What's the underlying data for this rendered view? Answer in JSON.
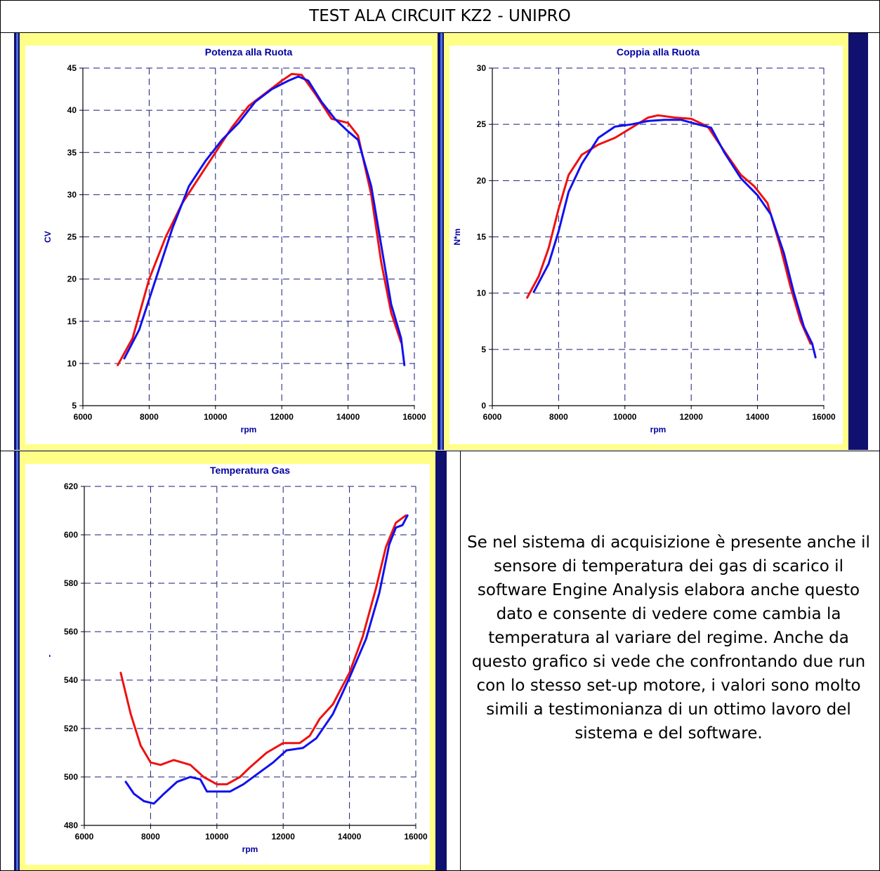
{
  "page_title": "TEST ALA CIRCUIT KZ2 - UNIPRO",
  "description": "Se nel sistema di acquisizione è presente anche il sensore di temperatura dei gas di scarico il software Engine Analysis elabora anche questo dato e consente di vedere come cambia la temperatura al variare del regime. Anche da questo grafico si vede che confrontando due run con lo stesso set-up motore, i valori sono molto simili a testimonianza di un ottimo lavoro del sistema e del software.",
  "colors": {
    "run_a": "#ee1111",
    "run_b": "#1111ee",
    "plot_border": "#ffff88",
    "grid": "#1a1a7a"
  },
  "chart_data": [
    {
      "type": "line",
      "title": "Potenza alla Ruota",
      "xlabel": "rpm",
      "ylabel": "CV",
      "xlim": [
        6000,
        16000
      ],
      "ylim": [
        5,
        45
      ],
      "xticks": [
        "6000",
        "8000",
        "10000",
        "12000",
        "14000",
        "16000"
      ],
      "yticks": [
        "5",
        "10",
        "15",
        "20",
        "25",
        "30",
        "35",
        "40",
        "45"
      ],
      "grid": true,
      "series": [
        {
          "color": "red",
          "points": [
            [
              7050,
              9.8
            ],
            [
              7500,
              13
            ],
            [
              8000,
              20
            ],
            [
              8500,
              25
            ],
            [
              9000,
              29
            ],
            [
              9500,
              32
            ],
            [
              10000,
              35
            ],
            [
              10500,
              38
            ],
            [
              11000,
              40.5
            ],
            [
              11500,
              42
            ],
            [
              12000,
              43.5
            ],
            [
              12300,
              44.3
            ],
            [
              12600,
              44.2
            ],
            [
              13000,
              42
            ],
            [
              13500,
              39
            ],
            [
              14000,
              38.5
            ],
            [
              14300,
              37
            ],
            [
              14700,
              30
            ],
            [
              15000,
              22
            ],
            [
              15300,
              16
            ],
            [
              15600,
              12.5
            ]
          ]
        },
        {
          "color": "blue",
          "points": [
            [
              7250,
              10.6
            ],
            [
              7700,
              14
            ],
            [
              8200,
              20
            ],
            [
              8700,
              26
            ],
            [
              9200,
              31
            ],
            [
              9700,
              34
            ],
            [
              10200,
              36.5
            ],
            [
              10700,
              38.5
            ],
            [
              11200,
              41
            ],
            [
              11700,
              42.5
            ],
            [
              12200,
              43.5
            ],
            [
              12500,
              44
            ],
            [
              12800,
              43.5
            ],
            [
              13200,
              41
            ],
            [
              13600,
              39
            ],
            [
              14000,
              37.5
            ],
            [
              14300,
              36.5
            ],
            [
              14700,
              31
            ],
            [
              15000,
              24
            ],
            [
              15300,
              17
            ],
            [
              15600,
              13
            ],
            [
              15700,
              9.8
            ]
          ]
        }
      ]
    },
    {
      "type": "line",
      "title": "Coppia alla Ruota",
      "xlabel": "rpm",
      "ylabel": "N*m",
      "xlim": [
        6000,
        16000
      ],
      "ylim": [
        0,
        30
      ],
      "xticks": [
        "6000",
        "8000",
        "10000",
        "12000",
        "14000",
        "16000"
      ],
      "yticks": [
        "0",
        "5",
        "10",
        "15",
        "20",
        "25",
        "30"
      ],
      "grid": true,
      "series": [
        {
          "color": "red",
          "points": [
            [
              7050,
              9.6
            ],
            [
              7400,
              11.5
            ],
            [
              7700,
              14
            ],
            [
              8000,
              17.5
            ],
            [
              8300,
              20.5
            ],
            [
              8700,
              22.3
            ],
            [
              9200,
              23.2
            ],
            [
              9700,
              23.8
            ],
            [
              10200,
              24.7
            ],
            [
              10700,
              25.6
            ],
            [
              11000,
              25.8
            ],
            [
              11500,
              25.6
            ],
            [
              12000,
              25.5
            ],
            [
              12500,
              24.8
            ],
            [
              13000,
              22.6
            ],
            [
              13500,
              20.5
            ],
            [
              13900,
              19.5
            ],
            [
              14300,
              18
            ],
            [
              14700,
              14
            ],
            [
              15000,
              10.5
            ],
            [
              15300,
              7.5
            ],
            [
              15600,
              5.5
            ]
          ]
        },
        {
          "color": "blue",
          "points": [
            [
              7250,
              10.1
            ],
            [
              7700,
              12.6
            ],
            [
              8000,
              15.5
            ],
            [
              8300,
              19
            ],
            [
              8700,
              21.5
            ],
            [
              9200,
              23.8
            ],
            [
              9700,
              24.8
            ],
            [
              10200,
              25
            ],
            [
              10700,
              25.3
            ],
            [
              11200,
              25.4
            ],
            [
              11700,
              25.4
            ],
            [
              12200,
              25
            ],
            [
              12600,
              24.7
            ],
            [
              13000,
              22.5
            ],
            [
              13500,
              20.2
            ],
            [
              14000,
              18.7
            ],
            [
              14400,
              17
            ],
            [
              14800,
              13.5
            ],
            [
              15100,
              10
            ],
            [
              15400,
              7
            ],
            [
              15650,
              5.5
            ],
            [
              15750,
              4.3
            ]
          ]
        }
      ]
    },
    {
      "type": "line",
      "title": "Temperatura Gas",
      "xlabel": "rpm",
      "ylabel": "-",
      "xlim": [
        6000,
        16000
      ],
      "ylim": [
        480,
        620
      ],
      "xticks": [
        "6000",
        "8000",
        "10000",
        "12000",
        "14000",
        "16000"
      ],
      "yticks": [
        "480",
        "500",
        "520",
        "540",
        "560",
        "580",
        "600",
        "620"
      ],
      "grid": true,
      "series": [
        {
          "color": "red",
          "points": [
            [
              7100,
              543
            ],
            [
              7400,
              526
            ],
            [
              7700,
              513
            ],
            [
              8000,
              506
            ],
            [
              8300,
              505
            ],
            [
              8700,
              507
            ],
            [
              9200,
              505
            ],
            [
              9600,
              500
            ],
            [
              10000,
              497
            ],
            [
              10300,
              497
            ],
            [
              10700,
              500
            ],
            [
              11000,
              504
            ],
            [
              11500,
              510
            ],
            [
              12000,
              514
            ],
            [
              12500,
              514
            ],
            [
              12800,
              517
            ],
            [
              13100,
              524
            ],
            [
              13500,
              530
            ],
            [
              14000,
              543
            ],
            [
              14400,
              558
            ],
            [
              14800,
              578
            ],
            [
              15100,
              595
            ],
            [
              15400,
              605
            ],
            [
              15700,
              608
            ]
          ]
        },
        {
          "color": "blue",
          "points": [
            [
              7250,
              498
            ],
            [
              7500,
              493
            ],
            [
              7800,
              490
            ],
            [
              8100,
              489
            ],
            [
              8400,
              493
            ],
            [
              8800,
              498
            ],
            [
              9200,
              500
            ],
            [
              9500,
              499
            ],
            [
              9700,
              494
            ],
            [
              10000,
              494
            ],
            [
              10400,
              494
            ],
            [
              10800,
              497
            ],
            [
              11200,
              501
            ],
            [
              11700,
              506
            ],
            [
              12100,
              511
            ],
            [
              12600,
              512
            ],
            [
              13000,
              516
            ],
            [
              13500,
              526
            ],
            [
              14000,
              541
            ],
            [
              14500,
              557
            ],
            [
              14900,
              576
            ],
            [
              15200,
              596
            ],
            [
              15400,
              603
            ],
            [
              15600,
              604
            ],
            [
              15750,
              608
            ]
          ]
        }
      ]
    }
  ]
}
